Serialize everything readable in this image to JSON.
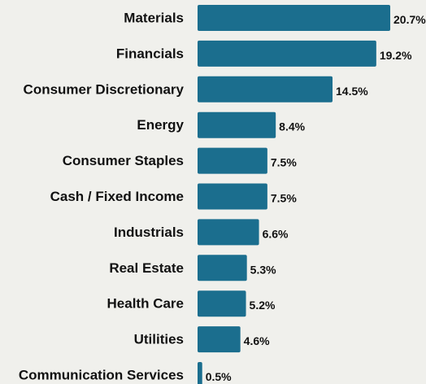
{
  "chart_data": {
    "type": "bar",
    "orientation": "horizontal",
    "categories": [
      "Materials",
      "Financials",
      "Consumer Discretionary",
      "Energy",
      "Consumer Staples",
      "Cash / Fixed Income",
      "Industrials",
      "Real Estate",
      "Health Care",
      "Utilities",
      "Communication Services"
    ],
    "values": [
      20.7,
      19.2,
      14.5,
      8.4,
      7.5,
      7.5,
      6.6,
      5.3,
      5.2,
      4.6,
      0.5
    ],
    "value_labels": [
      "20.7%",
      "19.2%",
      "14.5%",
      "8.4%",
      "7.5%",
      "7.5%",
      "6.6%",
      "5.3%",
      "5.2%",
      "4.6%",
      "0.5%"
    ],
    "bar_color": "#1b6e8e",
    "background_color": "#f0f0ec",
    "grid": false,
    "legend": "none"
  }
}
